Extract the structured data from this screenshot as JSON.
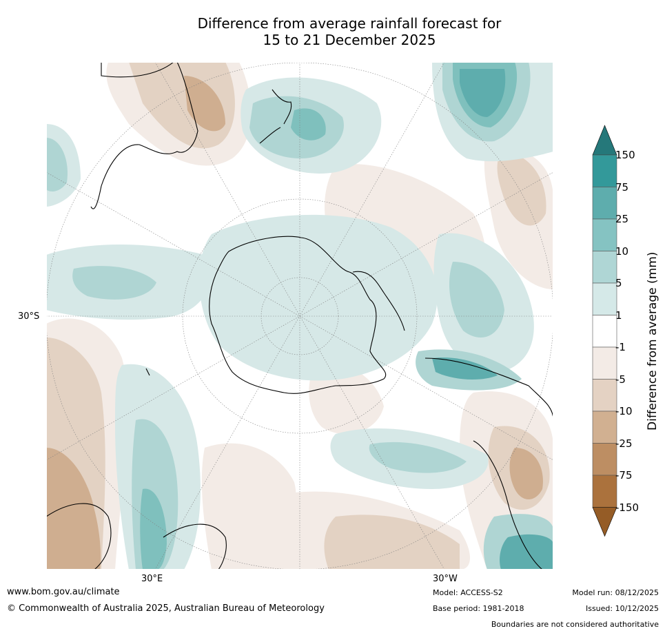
{
  "title": {
    "line1": "Difference from average rainfall forecast for",
    "line2": "15 to 21 December 2025"
  },
  "map": {
    "projection": "south polar stereographic",
    "graticule_labels": {
      "left": "30°S",
      "bottom_left": "30°E",
      "bottom_right": "30°W"
    },
    "colors": {
      "ocean_neutral": "#ffffff",
      "wet_light": "#d6e8e7",
      "wet_mid": "#afd5d3",
      "wet_strong": "#7fc0bd",
      "dry_light": "#f3ebe6",
      "dry_mid": "#e3d2c3",
      "dry_strong": "#cfae90",
      "coast": "#000000",
      "graticule": "#808080"
    }
  },
  "colorbar": {
    "title": "Difference from average (mm)",
    "tick_labels": [
      "150",
      "75",
      "25",
      "10",
      "5",
      "1",
      "-1",
      "-5",
      "-10",
      "-25",
      "-75",
      "-150"
    ],
    "extend_top_color": "#25787a",
    "extend_bottom_color": "#955c26",
    "bands": [
      {
        "color": "#33999a"
      },
      {
        "color": "#5eadad"
      },
      {
        "color": "#85c3c2"
      },
      {
        "color": "#afd6d5"
      },
      {
        "color": "#d5e9e8"
      },
      {
        "color": "#ffffff"
      },
      {
        "color": "#f3ebe6"
      },
      {
        "color": "#e4d2c3"
      },
      {
        "color": "#d1b091"
      },
      {
        "color": "#bd8e63"
      },
      {
        "color": "#ab723d"
      }
    ]
  },
  "footer": {
    "url": "www.bom.gov.au/climate",
    "copyright": "© Commonwealth of Australia 2025, Australian Bureau of Meteorology",
    "model": "Model: ACCESS-S2",
    "base_period": "Base period: 1981-2018",
    "model_run": "Model run: 08/12/2025",
    "issued": "Issued: 10/12/2025",
    "disclaimer": "Boundaries are not considered authoritative"
  }
}
